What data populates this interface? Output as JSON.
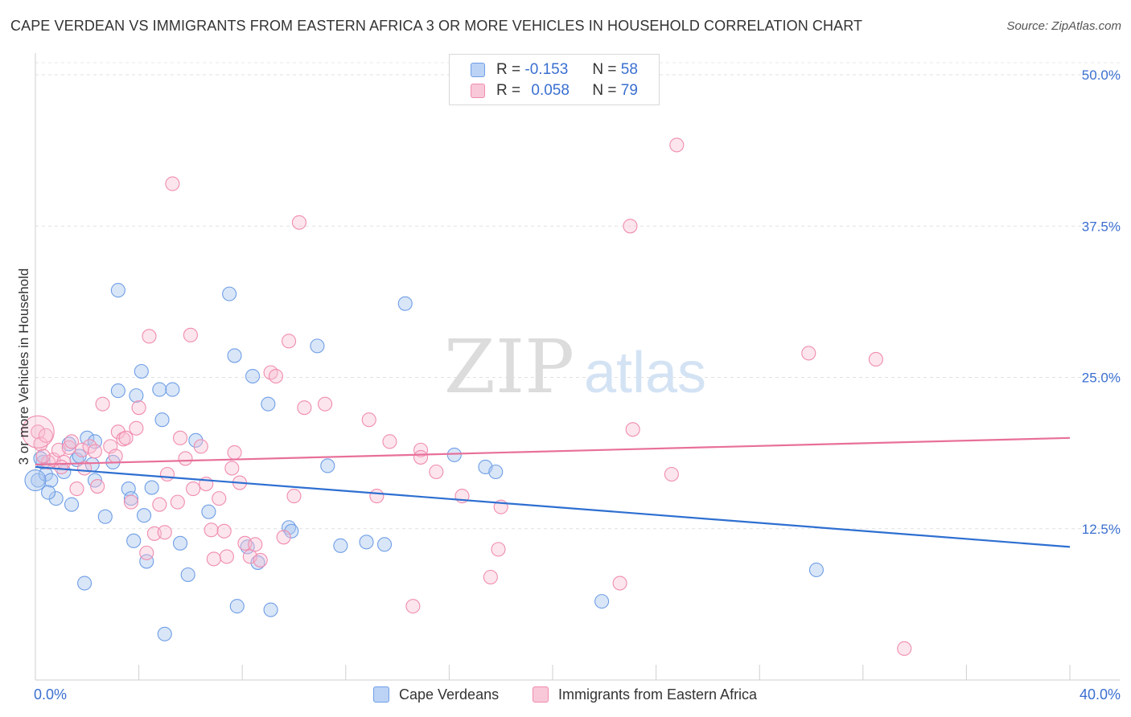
{
  "title": "CAPE VERDEAN VS IMMIGRANTS FROM EASTERN AFRICA 3 OR MORE VEHICLES IN HOUSEHOLD CORRELATION CHART",
  "source": "Source: ZipAtlas.com",
  "watermark": {
    "zip": "ZIP",
    "atlas": "atlas"
  },
  "legend": {
    "r_label": "R =",
    "n_label": "N =",
    "rows": [
      {
        "r": "-0.153",
        "n": "58",
        "color": "#6f9ee6"
      },
      {
        "r": "0.058",
        "n": "79",
        "color": "#f08caf"
      }
    ]
  },
  "bottom_legend": [
    "Cape Verdeans",
    "Immigrants from Eastern Africa"
  ],
  "chart_data": {
    "type": "scatter",
    "title": "CAPE VERDEAN VS IMMIGRANTS FROM EASTERN AFRICA 3 OR MORE VEHICLES IN HOUSEHOLD CORRELATION CHART",
    "xlabel": "",
    "ylabel": "3 or more Vehicles in Household",
    "xlim": [
      0,
      40
    ],
    "ylim": [
      0,
      51
    ],
    "x_tick_labels": [
      "0.0%",
      "40.0%"
    ],
    "y_ticks": [
      12.5,
      25.0,
      37.5,
      50.0
    ],
    "y_tick_labels": [
      "12.5%",
      "25.0%",
      "37.5%",
      "50.0%"
    ],
    "grid": true,
    "legend_position": "top-center",
    "series": [
      {
        "name": "Cape Verdeans",
        "color": "#6f9ee6",
        "trend": {
          "x": [
            0,
            40
          ],
          "y": [
            17.6,
            11.0
          ]
        },
        "points": [
          [
            0.1,
            16.5
          ],
          [
            0.3,
            18.0
          ],
          [
            0.4,
            17.0
          ],
          [
            0.6,
            16.5
          ],
          [
            0.8,
            15.0
          ],
          [
            1.1,
            17.2
          ],
          [
            1.3,
            19.5
          ],
          [
            1.4,
            14.5
          ],
          [
            1.6,
            18.2
          ],
          [
            1.7,
            18.5
          ],
          [
            2.0,
            20.0
          ],
          [
            2.3,
            19.7
          ],
          [
            2.2,
            17.8
          ],
          [
            2.3,
            16.5
          ],
          [
            1.9,
            8.0
          ],
          [
            2.7,
            13.5
          ],
          [
            3.0,
            18.0
          ],
          [
            3.2,
            23.9
          ],
          [
            3.2,
            32.2
          ],
          [
            3.6,
            15.8
          ],
          [
            3.8,
            11.5
          ],
          [
            3.9,
            23.5
          ],
          [
            4.1,
            25.5
          ],
          [
            4.2,
            13.6
          ],
          [
            4.3,
            9.8
          ],
          [
            4.5,
            15.9
          ],
          [
            4.8,
            24.0
          ],
          [
            4.9,
            21.5
          ],
          [
            5.0,
            3.8
          ],
          [
            5.3,
            24.0
          ],
          [
            5.6,
            11.3
          ],
          [
            5.9,
            8.7
          ],
          [
            6.2,
            19.8
          ],
          [
            6.7,
            13.9
          ],
          [
            7.5,
            31.9
          ],
          [
            7.7,
            26.8
          ],
          [
            7.8,
            6.1
          ],
          [
            8.2,
            11.0
          ],
          [
            8.4,
            25.1
          ],
          [
            8.6,
            9.7
          ],
          [
            9.0,
            22.8
          ],
          [
            9.1,
            5.8
          ],
          [
            9.8,
            12.6
          ],
          [
            9.9,
            12.3
          ],
          [
            10.9,
            27.6
          ],
          [
            11.3,
            17.7
          ],
          [
            11.8,
            11.1
          ],
          [
            12.8,
            11.4
          ],
          [
            13.5,
            11.2
          ],
          [
            14.3,
            31.1
          ],
          [
            16.2,
            18.6
          ],
          [
            17.4,
            17.6
          ],
          [
            17.8,
            17.2
          ],
          [
            30.2,
            9.1
          ],
          [
            21.9,
            6.5
          ],
          [
            0.2,
            18.3
          ],
          [
            0.5,
            15.5
          ],
          [
            3.7,
            15.0
          ]
        ]
      },
      {
        "name": "Immigrants from Eastern Africa",
        "color": "#f08caf",
        "trend": {
          "x": [
            0,
            40
          ],
          "y": [
            17.8,
            20.0
          ]
        },
        "points": [
          [
            0.1,
            20.5
          ],
          [
            0.2,
            19.5
          ],
          [
            0.4,
            20.2
          ],
          [
            0.5,
            18.0
          ],
          [
            0.7,
            18.2
          ],
          [
            0.9,
            19.0
          ],
          [
            1.1,
            18.0
          ],
          [
            1.3,
            19.2
          ],
          [
            1.4,
            19.7
          ],
          [
            1.6,
            15.8
          ],
          [
            1.8,
            19.0
          ],
          [
            1.9,
            17.5
          ],
          [
            2.1,
            19.3
          ],
          [
            2.3,
            18.9
          ],
          [
            2.4,
            16.0
          ],
          [
            2.6,
            22.8
          ],
          [
            2.9,
            19.3
          ],
          [
            3.1,
            18.5
          ],
          [
            3.2,
            20.5
          ],
          [
            3.4,
            19.9
          ],
          [
            3.5,
            20.0
          ],
          [
            3.7,
            14.7
          ],
          [
            3.9,
            20.8
          ],
          [
            4.0,
            22.5
          ],
          [
            4.3,
            10.5
          ],
          [
            4.4,
            28.4
          ],
          [
            4.6,
            12.1
          ],
          [
            4.8,
            14.5
          ],
          [
            5.0,
            12.2
          ],
          [
            5.1,
            17.0
          ],
          [
            5.3,
            41.0
          ],
          [
            5.5,
            14.7
          ],
          [
            5.6,
            20.0
          ],
          [
            5.8,
            18.3
          ],
          [
            6.0,
            28.5
          ],
          [
            6.1,
            15.8
          ],
          [
            6.4,
            19.3
          ],
          [
            6.6,
            16.2
          ],
          [
            6.8,
            12.4
          ],
          [
            6.9,
            10.0
          ],
          [
            7.1,
            15.0
          ],
          [
            7.3,
            12.3
          ],
          [
            7.4,
            10.2
          ],
          [
            7.6,
            17.5
          ],
          [
            7.7,
            18.8
          ],
          [
            7.9,
            16.3
          ],
          [
            8.1,
            11.3
          ],
          [
            8.3,
            10.2
          ],
          [
            8.5,
            11.2
          ],
          [
            8.7,
            9.9
          ],
          [
            9.1,
            25.4
          ],
          [
            9.3,
            25.1
          ],
          [
            9.6,
            11.8
          ],
          [
            9.8,
            28.0
          ],
          [
            10.0,
            15.2
          ],
          [
            10.2,
            37.8
          ],
          [
            10.4,
            22.5
          ],
          [
            11.2,
            22.8
          ],
          [
            12.9,
            21.5
          ],
          [
            13.2,
            15.2
          ],
          [
            13.7,
            19.7
          ],
          [
            14.6,
            6.1
          ],
          [
            14.9,
            19.0
          ],
          [
            14.9,
            18.4
          ],
          [
            15.5,
            17.2
          ],
          [
            16.5,
            15.2
          ],
          [
            17.6,
            8.5
          ],
          [
            17.9,
            10.8
          ],
          [
            18.0,
            14.3
          ],
          [
            22.6,
            8.0
          ],
          [
            23.0,
            37.5
          ],
          [
            23.1,
            20.7
          ],
          [
            24.6,
            17.0
          ],
          [
            24.8,
            44.2
          ],
          [
            29.9,
            27.0
          ],
          [
            32.5,
            26.5
          ],
          [
            33.6,
            2.6
          ],
          [
            0.3,
            18.5
          ],
          [
            1.0,
            17.6
          ]
        ]
      }
    ]
  }
}
